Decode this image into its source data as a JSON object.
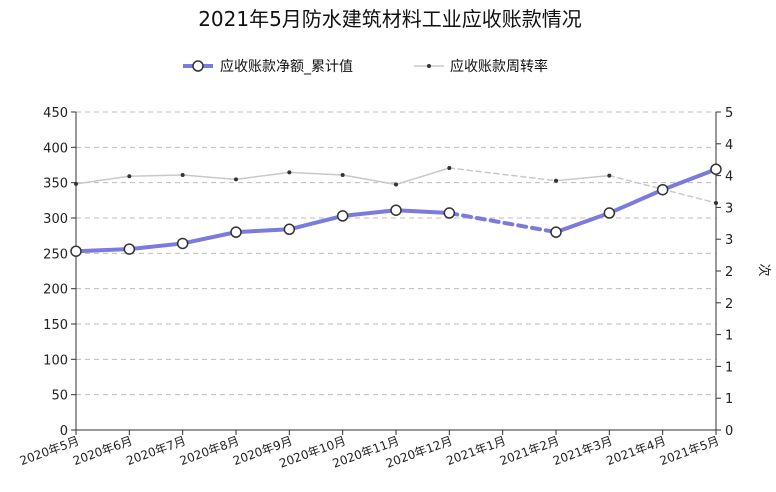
{
  "chart_data": {
    "type": "line",
    "title": "2021年5月防水建筑材料工业应收账款情况",
    "categories": [
      "2020年5月",
      "2020年6月",
      "2020年7月",
      "2020年8月",
      "2020年9月",
      "2020年10月",
      "2020年11月",
      "2020年12月",
      "2021年1月",
      "2021年2月",
      "2021年3月",
      "2021年4月",
      "2021年5月"
    ],
    "y_left": {
      "min": 0,
      "max": 450,
      "ticks": [
        0,
        50,
        100,
        150,
        200,
        250,
        300,
        350,
        400,
        450
      ]
    },
    "y_right": {
      "label": "次",
      "min": 0,
      "max": 5,
      "tick_positions": [
        0,
        0.5,
        1,
        1.5,
        2,
        2.5,
        3,
        3.5,
        4,
        4.5,
        5
      ],
      "tick_labels": [
        "0",
        "1",
        "1",
        "1",
        "2",
        "2",
        "3",
        "3",
        "4",
        "4",
        "5"
      ]
    },
    "series": [
      {
        "name": "应收账款净额_累计值",
        "axis": "left",
        "color": "#7b7bdf",
        "values": [
          253,
          256,
          264,
          280,
          284,
          303,
          311,
          307,
          null,
          280,
          307,
          340,
          369
        ]
      },
      {
        "name": "应收账款周转率",
        "axis": "right",
        "color": "#c8c8c8",
        "values": [
          3.87,
          3.99,
          4.01,
          3.94,
          4.05,
          4.01,
          3.86,
          4.12,
          null,
          3.92,
          4.0,
          null,
          3.57
        ]
      }
    ],
    "legend_position": "top-center",
    "grid": true
  }
}
